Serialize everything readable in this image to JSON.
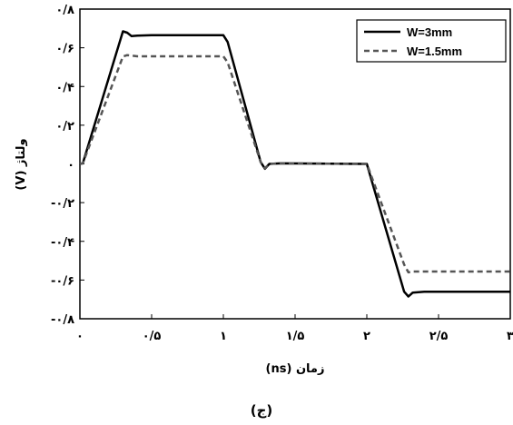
{
  "chart_data": {
    "type": "line",
    "xlabel": "زمان (ns)",
    "ylabel": "ولتاژ (V)",
    "caption": "(ج)",
    "xlim": [
      0,
      3
    ],
    "ylim": [
      -0.8,
      0.8
    ],
    "x_ticks": [
      0,
      0.5,
      1,
      1.5,
      2,
      2.5,
      3
    ],
    "x_tick_labels": [
      "۰",
      "۰/۵",
      "۱",
      "۱/۵",
      "۲",
      "۲/۵",
      "۳"
    ],
    "y_ticks": [
      0.8,
      0.6,
      0.4,
      0.2,
      0,
      -0.2,
      -0.4,
      -0.6,
      -0.8
    ],
    "y_tick_labels": [
      "۰/۸",
      "۰/۶",
      "۰/۴",
      "۰/۲",
      "۰",
      "-۰/۲",
      "-۰/۴",
      "-۰/۶",
      "-۰/۸"
    ],
    "grid": false,
    "legend_position": "top-right",
    "series": [
      {
        "name": "W=3mm",
        "style": "solid",
        "color": "#000000",
        "x": [
          0,
          0.02,
          0.3,
          0.33,
          0.36,
          0.4,
          0.5,
          1.0,
          1.03,
          1.26,
          1.29,
          1.32,
          1.4,
          2.0,
          2.26,
          2.29,
          2.32,
          2.4,
          3.0
        ],
        "y": [
          0,
          0.003,
          0.685,
          0.678,
          0.66,
          0.663,
          0.665,
          0.665,
          0.63,
          0.01,
          -0.025,
          0.0,
          0.003,
          0.0,
          -0.66,
          -0.685,
          -0.665,
          -0.66,
          -0.66
        ]
      },
      {
        "name": "W=1.5mm",
        "style": "dashed",
        "color": "#555555",
        "x": [
          0,
          0.02,
          0.3,
          0.33,
          0.4,
          1.0,
          1.03,
          1.26,
          1.29,
          1.32,
          1.4,
          2.0,
          2.26,
          2.29,
          2.32,
          3.0
        ],
        "y": [
          0,
          0.003,
          0.555,
          0.562,
          0.556,
          0.556,
          0.525,
          0.01,
          -0.022,
          0.0,
          0.003,
          0.0,
          -0.52,
          -0.56,
          -0.556,
          -0.556
        ]
      }
    ]
  }
}
